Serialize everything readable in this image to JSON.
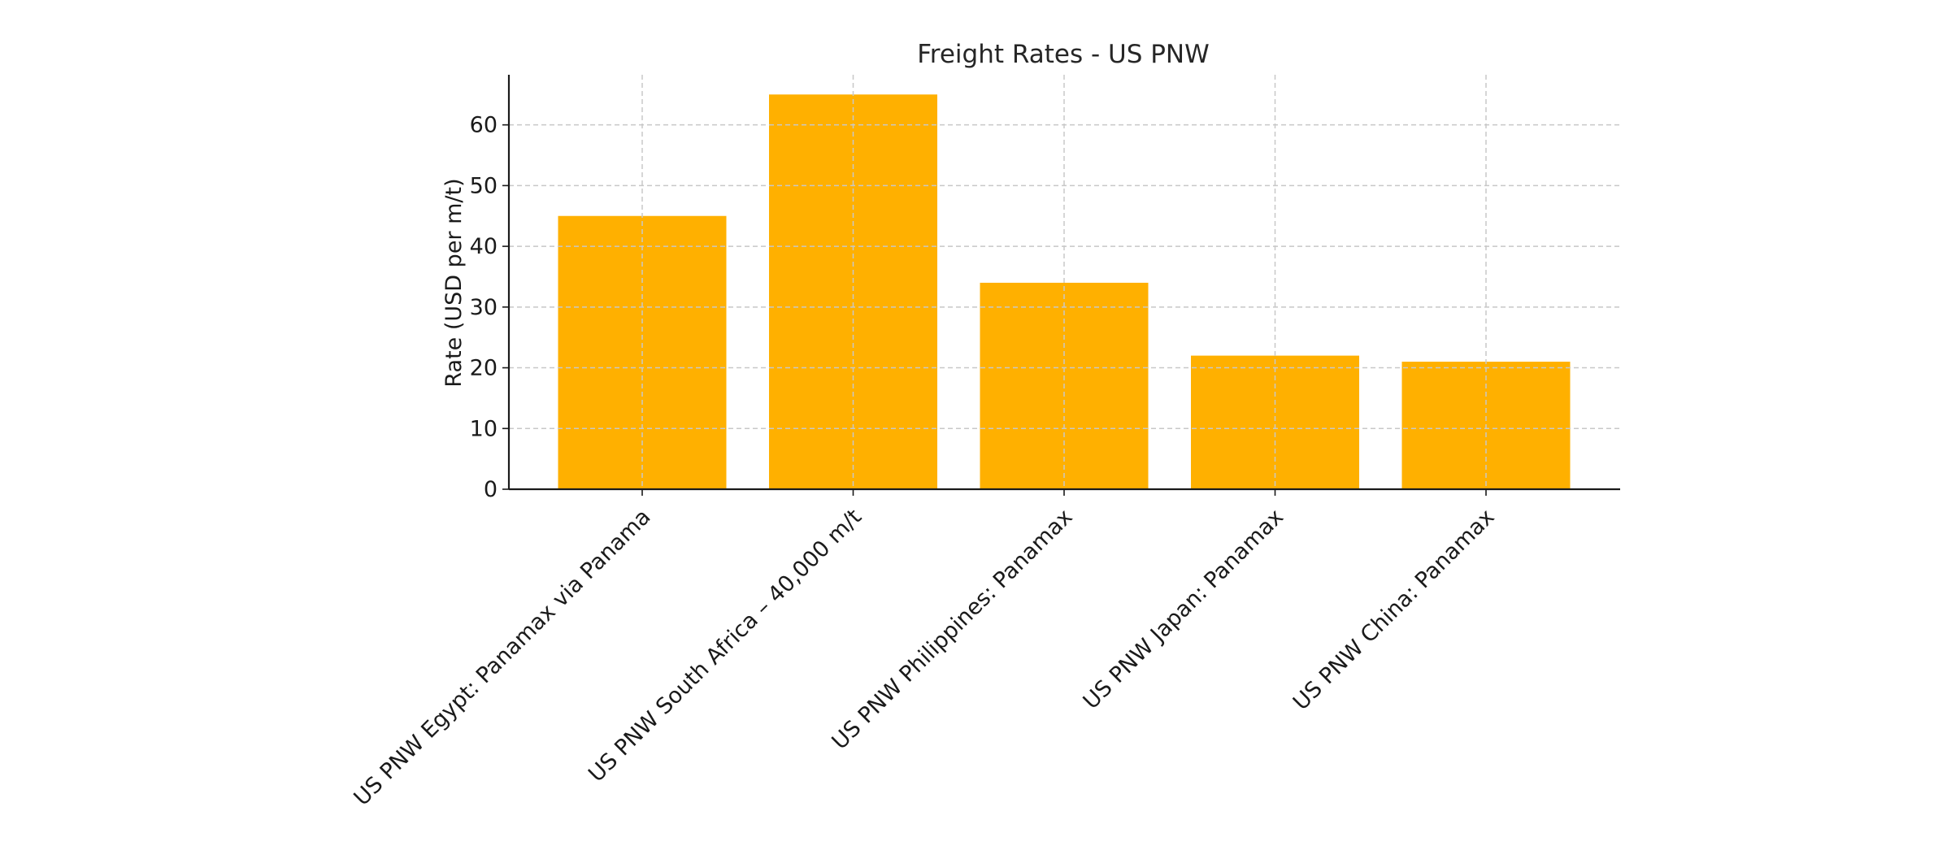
{
  "chart_data": {
    "type": "bar",
    "title": "Freight Rates - US PNW",
    "xlabel": "",
    "ylabel": "Rate (USD per m/t)",
    "categories": [
      "US PNW Egypt: Panamax via Panama",
      "US PNW South Africa – 40,000 m/t",
      "US PNW Philippines: Panamax",
      "US PNW Japan: Panamax",
      "US PNW China: Panamax"
    ],
    "values": [
      45,
      65,
      34,
      22,
      21
    ],
    "ylim": [
      0,
      68.25
    ],
    "yticks": [
      0,
      10,
      20,
      30,
      40,
      50,
      60
    ],
    "grid": true,
    "bar_color": "#FFB000"
  }
}
